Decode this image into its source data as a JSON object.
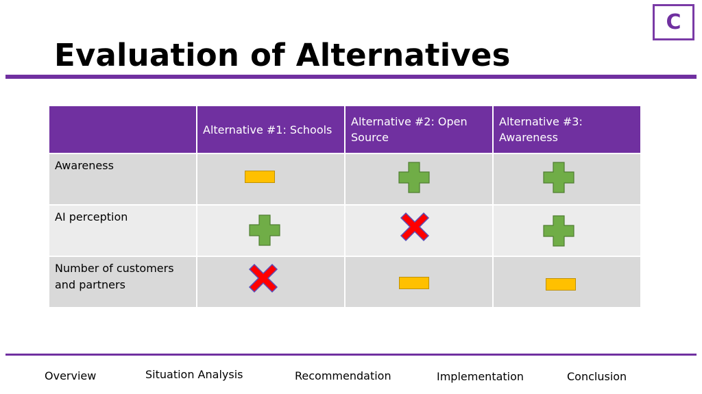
{
  "badge": "C",
  "title": "Evaluation of Alternatives",
  "colors": {
    "accent": "#7030a0",
    "plus": "#70ad47",
    "cross": "#ff0000",
    "minus": "#ffc000"
  },
  "table": {
    "headers": [
      "",
      "Alternative #1: Schools",
      "Alternative #2: Open Source",
      "Alternative #3: Awareness"
    ],
    "rows": [
      {
        "label": "Awareness",
        "ratings": [
          "minus",
          "plus",
          "plus"
        ]
      },
      {
        "label": "AI perception",
        "ratings": [
          "plus",
          "cross",
          "plus"
        ]
      },
      {
        "label": "Number of customers and partners",
        "ratings": [
          "cross",
          "minus",
          "minus"
        ]
      }
    ]
  },
  "nav": [
    "Overview",
    "Situation Analysis",
    "Recommendation",
    "Implementation",
    "Conclusion"
  ]
}
